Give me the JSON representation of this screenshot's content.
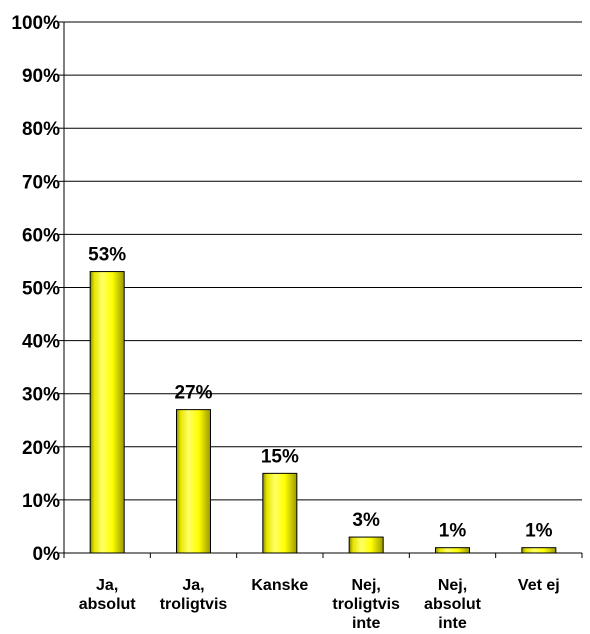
{
  "chart_data": {
    "type": "bar",
    "categories": [
      [
        "Ja,",
        "absolut"
      ],
      [
        "Ja,",
        "troligtvis"
      ],
      [
        "Kanske"
      ],
      [
        "Nej,",
        "troligtvis",
        "inte"
      ],
      [
        "Nej,",
        "absolut",
        "inte"
      ],
      [
        "Vet ej"
      ]
    ],
    "values": [
      53,
      27,
      15,
      3,
      1,
      1
    ],
    "data_labels": [
      "53%",
      "27%",
      "15%",
      "3%",
      "1%",
      "1%"
    ],
    "ylim": [
      0,
      100
    ],
    "yticks": [
      0,
      10,
      20,
      30,
      40,
      50,
      60,
      70,
      80,
      90,
      100
    ],
    "ytick_labels": [
      "0%",
      "10%",
      "20%",
      "30%",
      "40%",
      "50%",
      "60%",
      "70%",
      "80%",
      "90%",
      "100%"
    ],
    "grid": true,
    "bar_color": "#ffff00",
    "bar_shadow_color": "#8c8c00"
  }
}
